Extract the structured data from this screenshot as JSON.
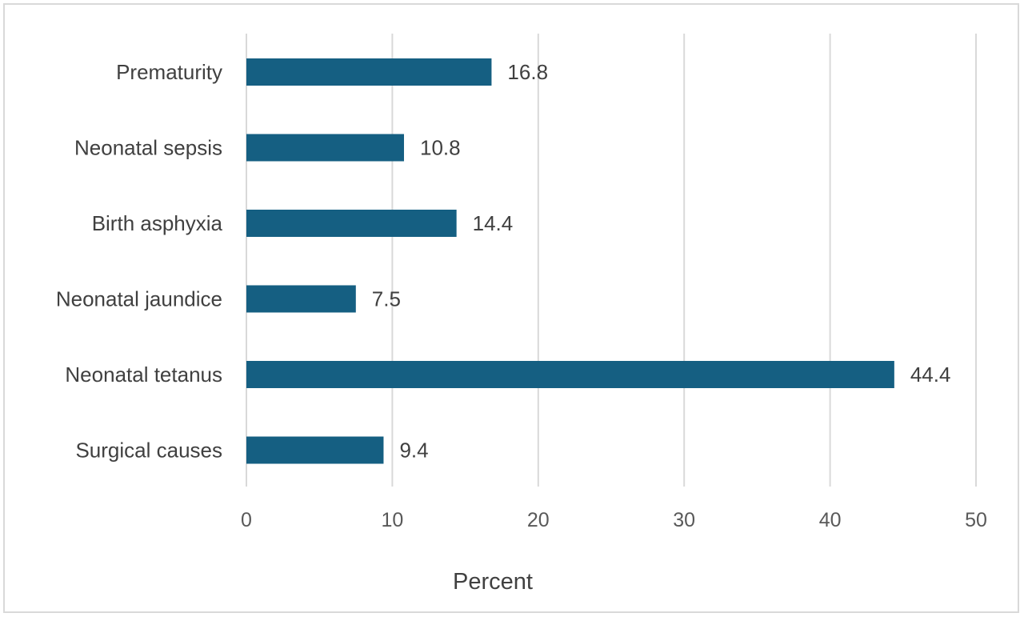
{
  "chart_data": {
    "type": "bar",
    "orientation": "horizontal",
    "categories": [
      "Prematurity",
      "Neonatal sepsis",
      "Birth asphyxia",
      "Neonatal jaundice",
      "Neonatal tetanus",
      "Surgical causes"
    ],
    "values": [
      16.8,
      10.8,
      14.4,
      7.5,
      44.4,
      9.4
    ],
    "data_labels": [
      "16.8",
      "10.8",
      "14.4",
      "7.5",
      "44.4",
      "9.4"
    ],
    "xlabel": "Percent",
    "ylabel": "",
    "xlim": [
      0,
      50
    ],
    "xticks": [
      0,
      10,
      20,
      30,
      40,
      50
    ],
    "xtick_labels": [
      "0",
      "10",
      "20",
      "30",
      "40",
      "50"
    ],
    "grid": "vertical",
    "bar_color": "#155f82",
    "gridline_color": "#d9d9d9"
  }
}
